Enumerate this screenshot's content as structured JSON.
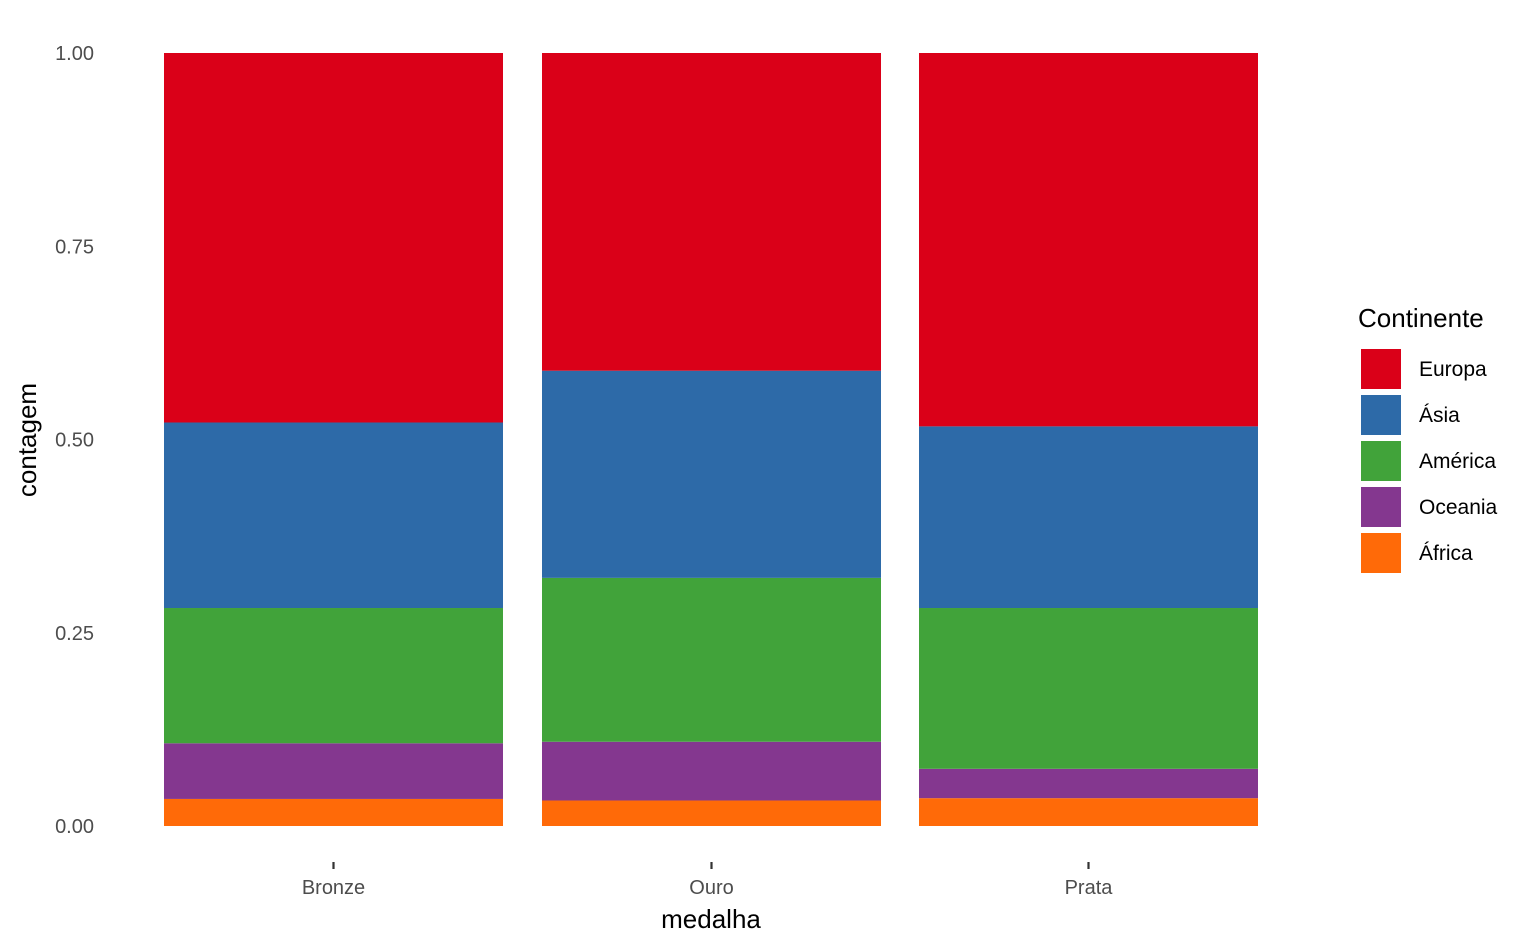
{
  "chart_data": {
    "type": "bar",
    "stacked": true,
    "normalized": true,
    "categories": [
      "Bronze",
      "Ouro",
      "Prata"
    ],
    "xlabel": "medalha",
    "ylabel": "contagem",
    "ylim": [
      0,
      1
    ],
    "yticks": [
      "0.00",
      "0.25",
      "0.50",
      "0.75",
      "1.00"
    ],
    "ytick_values": [
      0,
      0.25,
      0.5,
      0.75,
      1.0
    ],
    "grid": false,
    "legend": {
      "title": "Continente",
      "placement": "right"
    },
    "series": [
      {
        "name": "Europa",
        "color": "#DA0018",
        "values": [
          0.478,
          0.411,
          0.483
        ]
      },
      {
        "name": "Ásia",
        "color": "#2D6AA8",
        "values": [
          0.24,
          0.268,
          0.235
        ]
      },
      {
        "name": "América",
        "color": "#41A33A",
        "values": [
          0.175,
          0.212,
          0.208
        ]
      },
      {
        "name": "Oceania",
        "color": "#84378F",
        "values": [
          0.072,
          0.076,
          0.038
        ]
      },
      {
        "name": "África",
        "color": "#FF6A08",
        "values": [
          0.035,
          0.033,
          0.036
        ]
      }
    ]
  }
}
